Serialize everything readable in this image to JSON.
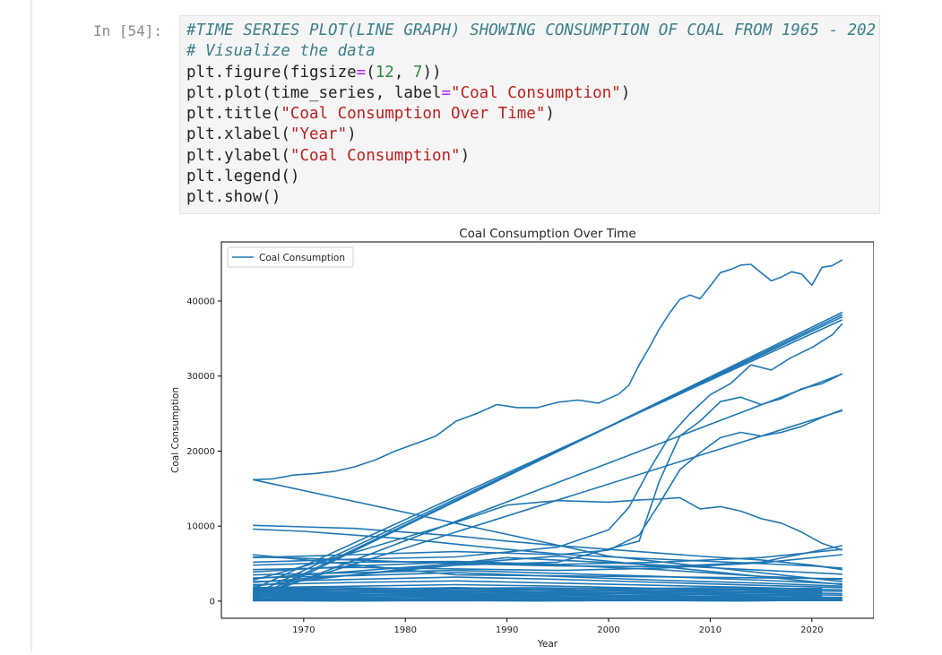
{
  "cell": {
    "prompt": "In [54]:",
    "code": {
      "comment1": "#TIME SERIES PLOT(LINE GRAPH) SHOWING CONSUMPTION OF COAL FROM 1965 - 202",
      "comment2": "# Visualize the data",
      "l1_fn": "plt.figure(figsize",
      "l1_op": "=",
      "l1_open": "(",
      "l1_n1": "12",
      "l1_sep": ", ",
      "l1_n2": "7",
      "l1_close": "))",
      "l2_fn": "plt.plot(time_series, label",
      "l2_op": "=",
      "l2_str": "\"Coal Consumption\"",
      "l2_close": ")",
      "l3_fn": "plt.title(",
      "l3_str": "\"Coal Consumption Over Time\"",
      "l3_close": ")",
      "l4_fn": "plt.xlabel(",
      "l4_str": "\"Year\"",
      "l4_close": ")",
      "l5_fn": "plt.ylabel(",
      "l5_str": "\"Coal Consumption\"",
      "l5_close": ")",
      "l6": "plt.legend()",
      "l7": "plt.show()"
    }
  },
  "colors": {
    "line": "#1f77b4",
    "axes": "#000000",
    "comment": "#3d7f8c",
    "string": "#ba2121",
    "number": "#2b8a3e",
    "operator": "#aa22ff"
  },
  "chart_data": {
    "type": "line",
    "title": "Coal Consumption Over Time",
    "xlabel": "Year",
    "ylabel": "Coal Consumption",
    "legend": {
      "entries": [
        "Coal Consumption"
      ],
      "placement": "upper-left"
    },
    "grid": false,
    "xlim": [
      1961.9,
      2026.1
    ],
    "ylim": [
      -2280,
      47880
    ],
    "xticks": [
      1970,
      1980,
      1990,
      2000,
      2010,
      2020
    ],
    "yticks": [
      0,
      10000,
      20000,
      30000,
      40000
    ],
    "series": [
      {
        "x": [
          1965,
          1967,
          1969,
          1971,
          1973,
          1975,
          1977,
          1979,
          1981,
          1983,
          1985,
          1987,
          1989,
          1991,
          1993,
          1995,
          1997,
          1999,
          2001,
          2002,
          2003,
          2004,
          2005,
          2006,
          2007,
          2008,
          2009,
          2010,
          2011,
          2012,
          2013,
          2014,
          2015,
          2016,
          2017,
          2018,
          2019,
          2020,
          2021,
          2022,
          2023
        ],
        "y": [
          16200,
          16300,
          16800,
          17000,
          17300,
          17900,
          18800,
          20000,
          21000,
          22000,
          24000,
          25000,
          26200,
          25800,
          25800,
          26500,
          26800,
          26400,
          27600,
          28800,
          31500,
          33800,
          36300,
          38400,
          40200,
          40800,
          40300,
          42000,
          43800,
          44200,
          44800,
          44900,
          43800,
          42700,
          43200,
          43900,
          43600,
          42100,
          44500,
          44700,
          45500
        ]
      },
      {
        "x": [
          1965,
          2023
        ],
        "y": [
          100,
          38500
        ]
      },
      {
        "x": [
          1965,
          2023
        ],
        "y": [
          400,
          38200
        ]
      },
      {
        "x": [
          1965,
          2023
        ],
        "y": [
          900,
          37900
        ]
      },
      {
        "x": [
          1965,
          2023
        ],
        "y": [
          1600,
          37500
        ]
      },
      {
        "x": [
          1965,
          1975,
          1985,
          1995,
          2000,
          2002,
          2004,
          2006,
          2008,
          2010,
          2012,
          2014,
          2016,
          2018,
          2020,
          2022,
          2023
        ],
        "y": [
          5200,
          5600,
          5900,
          7200,
          9500,
          12500,
          17500,
          22000,
          25000,
          27500,
          29000,
          31500,
          30800,
          32500,
          33800,
          35500,
          37000
        ]
      },
      {
        "x": [
          1965,
          2023
        ],
        "y": [
          300,
          30300
        ]
      },
      {
        "x": [
          1965,
          1975,
          1985,
          1995,
          2003,
          2005,
          2007,
          2009,
          2011,
          2013,
          2015,
          2017,
          2019,
          2021,
          2023
        ],
        "y": [
          2500,
          3500,
          4800,
          5200,
          8000,
          16000,
          22000,
          24000,
          26600,
          27200,
          26200,
          27000,
          28300,
          29000,
          30300
        ]
      },
      {
        "x": [
          1965,
          1975,
          1985,
          1995,
          2000,
          2003,
          2005,
          2007,
          2009,
          2011,
          2013,
          2015,
          2017,
          2019,
          2021,
          2023
        ],
        "y": [
          5800,
          6200,
          6600,
          6200,
          6800,
          8800,
          13000,
          17500,
          19800,
          21800,
          22500,
          22000,
          22500,
          23300,
          24500,
          25500
        ]
      },
      {
        "x": [
          1965,
          2023
        ],
        "y": [
          700,
          25400
        ]
      },
      {
        "x": [
          1965,
          1975,
          1985,
          1990,
          1995,
          2000,
          2003,
          2005,
          2007,
          2009,
          2011,
          2013,
          2015,
          2017,
          2019,
          2021,
          2023
        ],
        "y": [
          2800,
          6500,
          10500,
          12800,
          13400,
          13200,
          13500,
          13600,
          13800,
          12300,
          12600,
          12000,
          11000,
          10400,
          9200,
          7700,
          6800
        ]
      },
      {
        "x": [
          1965,
          1970,
          1975,
          1980,
          1985,
          1990,
          1995,
          2000,
          2005,
          2010,
          2015,
          2020,
          2023
        ],
        "y": [
          10100,
          9900,
          9700,
          9200,
          8700,
          8000,
          7400,
          6900,
          6400,
          5900,
          5500,
          4800,
          4200
        ]
      },
      {
        "x": [
          1965,
          1970,
          1975,
          1980,
          1985,
          1990,
          1995,
          2000,
          2005,
          2010,
          2015,
          2020,
          2023
        ],
        "y": [
          9600,
          9300,
          8800,
          8300,
          7600,
          6900,
          6300,
          5900,
          5600,
          5300,
          5000,
          4700,
          4400
        ]
      },
      {
        "x": [
          1965,
          2000,
          2023
        ],
        "y": [
          16200,
          6000,
          2600
        ]
      },
      {
        "x": [
          1965,
          1975,
          1985,
          1995,
          2005,
          2015,
          2023
        ],
        "y": [
          5900,
          5500,
          5000,
          4700,
          4600,
          5200,
          7400
        ]
      },
      {
        "x": [
          1965,
          1975,
          1985,
          1995,
          2005,
          2015,
          2023
        ],
        "y": [
          4800,
          5200,
          5300,
          4900,
          5200,
          5800,
          6900
        ]
      },
      {
        "x": [
          1965,
          1975,
          1985,
          1995,
          2005,
          2015,
          2023
        ],
        "y": [
          4200,
          4500,
          4300,
          4100,
          4400,
          5100,
          6200
        ]
      },
      {
        "x": [
          1965,
          1975,
          1985,
          1995,
          2005,
          2015,
          2023
        ],
        "y": [
          3900,
          4700,
          5200,
          4800,
          4200,
          3300,
          2900
        ]
      },
      {
        "x": [
          1965,
          1975,
          1985,
          1995,
          2005,
          2015,
          2023
        ],
        "y": [
          3500,
          3800,
          4100,
          3700,
          3300,
          2800,
          2300
        ]
      },
      {
        "x": [
          1965,
          1975,
          1985,
          1995,
          2005,
          2015,
          2023
        ],
        "y": [
          3100,
          3400,
          3800,
          3300,
          2800,
          2400,
          2000
        ]
      },
      {
        "x": [
          1965,
          1975,
          1985,
          1995,
          2005,
          2015,
          2023
        ],
        "y": [
          2600,
          2900,
          3200,
          2900,
          2500,
          2100,
          1800
        ]
      },
      {
        "x": [
          1965,
          1975,
          1985,
          1995,
          2005,
          2015,
          2023
        ],
        "y": [
          2200,
          2500,
          2700,
          2400,
          2100,
          1800,
          1500
        ]
      },
      {
        "x": [
          1965,
          1975,
          1985,
          1995,
          2005,
          2015,
          2023
        ],
        "y": [
          1800,
          2000,
          2200,
          2000,
          1700,
          1500,
          1300
        ]
      },
      {
        "x": [
          1965,
          1975,
          1985,
          1995,
          2005,
          2015,
          2023
        ],
        "y": [
          1400,
          1600,
          1800,
          1500,
          1300,
          1200,
          1000
        ]
      },
      {
        "x": [
          1965,
          1975,
          1985,
          1995,
          2005,
          2015,
          2023
        ],
        "y": [
          1000,
          1200,
          1300,
          1100,
          1000,
          900,
          800
        ]
      },
      {
        "x": [
          1965,
          1975,
          1985,
          1995,
          2005,
          2015,
          2023
        ],
        "y": [
          700,
          800,
          900,
          800,
          700,
          600,
          500
        ]
      },
      {
        "x": [
          1965,
          1975,
          1985,
          1995,
          2005,
          2015,
          2023
        ],
        "y": [
          400,
          500,
          600,
          500,
          500,
          400,
          350
        ]
      },
      {
        "x": [
          1965,
          1975,
          1985,
          1995,
          2005,
          2015,
          2023
        ],
        "y": [
          200,
          250,
          300,
          300,
          250,
          200,
          200
        ]
      },
      {
        "x": [
          1965,
          2023
        ],
        "y": [
          50,
          80
        ]
      },
      {
        "x": [
          1965,
          2023
        ],
        "y": [
          150,
          120
        ]
      },
      {
        "x": [
          1965,
          1985,
          2023
        ],
        "y": [
          6200,
          3500,
          3000
        ]
      },
      {
        "x": [
          1965,
          1990,
          2023
        ],
        "y": [
          2000,
          5800,
          3600
        ]
      },
      {
        "x": [
          1965,
          1995,
          2023
        ],
        "y": [
          3000,
          6000,
          2200
        ]
      }
    ]
  }
}
